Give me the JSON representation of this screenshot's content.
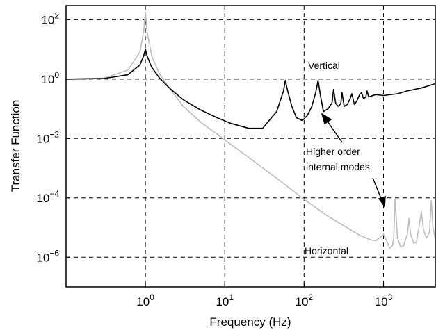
{
  "chart_data": {
    "type": "line",
    "title": "",
    "xlabel": "Frequency (Hz)",
    "ylabel": "Transfer Function",
    "x_scale": "log",
    "y_scale": "log",
    "xlim": [
      0.1,
      4500
    ],
    "ylim": [
      1e-07,
      300
    ],
    "grid": "dashed",
    "x_ticks": [
      {
        "value": 1,
        "base": "10",
        "exp": "0"
      },
      {
        "value": 10,
        "base": "10",
        "exp": "1"
      },
      {
        "value": 100,
        "base": "10",
        "exp": "2"
      },
      {
        "value": 1000,
        "base": "10",
        "exp": "3"
      }
    ],
    "y_ticks": [
      {
        "value": 100,
        "base": "10",
        "exp": "2"
      },
      {
        "value": 1,
        "base": "10",
        "exp": "0"
      },
      {
        "value": 0.01,
        "base": "10",
        "exp": "−2"
      },
      {
        "value": 0.0001,
        "base": "10",
        "exp": "−4"
      },
      {
        "value": 1e-06,
        "base": "10",
        "exp": "−6"
      }
    ],
    "series": [
      {
        "label": "Vertical",
        "color": "#000000",
        "x": [
          0.1,
          0.3,
          0.6,
          0.85,
          0.95,
          1.0,
          1.05,
          1.2,
          1.5,
          2,
          3,
          5,
          8,
          12,
          20,
          30,
          45,
          55,
          58,
          62,
          70,
          80,
          95,
          110,
          125,
          140,
          150,
          160,
          175,
          200,
          225,
          235,
          250,
          270,
          290,
          300,
          320,
          350,
          380,
          400,
          430,
          460,
          500,
          530,
          560,
          600,
          620,
          650,
          700,
          800,
          1000,
          1500,
          2000,
          3000,
          4500
        ],
        "y": [
          1.0,
          1.05,
          1.4,
          3.0,
          6.0,
          10.0,
          6.0,
          2.5,
          1.1,
          0.5,
          0.2,
          0.09,
          0.05,
          0.032,
          0.022,
          0.022,
          0.08,
          0.4,
          0.9,
          0.4,
          0.12,
          0.05,
          0.04,
          0.06,
          0.12,
          0.35,
          0.9,
          0.3,
          0.08,
          0.1,
          0.16,
          0.45,
          0.15,
          0.12,
          0.15,
          0.35,
          0.12,
          0.14,
          0.22,
          0.32,
          0.14,
          0.18,
          0.3,
          0.35,
          0.22,
          0.25,
          0.4,
          0.25,
          0.27,
          0.3,
          0.28,
          0.32,
          0.4,
          0.5,
          0.7
        ]
      },
      {
        "label": "Horizontal",
        "color": "#bdbdbd",
        "x": [
          0.1,
          0.3,
          0.6,
          0.85,
          0.95,
          1.0,
          1.05,
          1.2,
          1.5,
          2,
          3,
          5,
          10,
          20,
          50,
          100,
          200,
          500,
          700,
          800,
          900,
          1000,
          1100,
          1200,
          1300,
          1350,
          1400,
          1500,
          1650,
          1800,
          2000,
          2100,
          2200,
          2400,
          2600,
          2800,
          3000,
          3200,
          3500,
          3800,
          4000,
          4200,
          4500
        ],
        "y": [
          1.0,
          1.08,
          2.0,
          8.0,
          40.0,
          180.0,
          40.0,
          6.0,
          1.5,
          0.5,
          0.12,
          0.035,
          0.009,
          0.0023,
          0.00037,
          9e-05,
          2.4e-05,
          5.5e-06,
          3.8e-06,
          3.6e-06,
          4.5e-06,
          6e-06,
          3.5e-06,
          2e-06,
          2.5e-06,
          5e-06,
          9e-05,
          4.5e-06,
          2.2e-06,
          2.5e-06,
          6e-06,
          2e-05,
          6e-06,
          3e-06,
          3.2e-06,
          1e-05,
          3.5e-05,
          8e-06,
          4.5e-06,
          7e-06,
          8e-05,
          1e-05,
          4.2e-06
        ]
      }
    ],
    "annotations": [
      {
        "text": "Vertical"
      },
      {
        "text": "Horizontal"
      },
      {
        "text": "Higher order"
      },
      {
        "text": "internal modes"
      }
    ]
  }
}
